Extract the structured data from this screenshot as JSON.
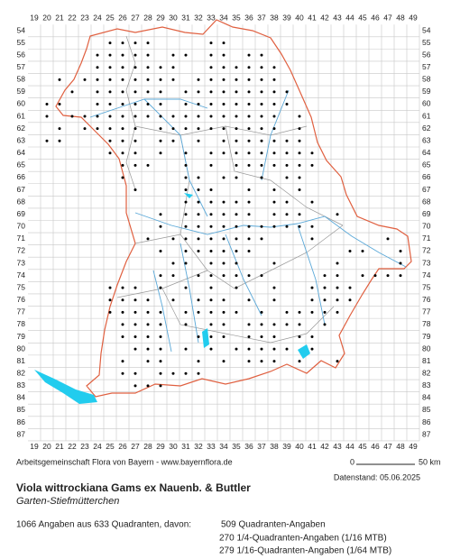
{
  "map": {
    "columns": [
      19,
      20,
      21,
      22,
      23,
      24,
      25,
      26,
      27,
      28,
      29,
      30,
      31,
      32,
      33,
      34,
      35,
      36,
      37,
      38,
      39,
      40,
      41,
      42,
      43,
      44,
      45,
      46,
      47,
      48,
      49
    ],
    "rows": [
      54,
      55,
      56,
      57,
      58,
      59,
      60,
      61,
      62,
      63,
      64,
      65,
      66,
      67,
      68,
      69,
      70,
      71,
      72,
      73,
      74,
      75,
      76,
      77,
      78,
      79,
      80,
      81,
      82,
      83,
      84,
      85,
      86,
      87
    ],
    "occurrences": [
      {
        "row": 55,
        "cols": [
          25,
          26,
          27,
          28,
          33,
          34
        ]
      },
      {
        "row": 56,
        "cols": [
          24,
          25,
          26,
          27,
          28,
          30,
          31,
          33,
          34,
          36,
          37
        ]
      },
      {
        "row": 57,
        "cols": [
          24,
          25,
          26,
          27,
          28,
          29,
          30,
          33,
          34,
          35,
          36,
          37,
          38
        ]
      },
      {
        "row": 58,
        "cols": [
          21,
          23,
          24,
          25,
          26,
          27,
          28,
          29,
          30,
          32,
          33,
          34,
          35,
          36,
          37,
          38
        ]
      },
      {
        "row": 59,
        "cols": [
          22,
          24,
          25,
          26,
          27,
          28,
          29,
          31,
          32,
          33,
          34,
          35,
          36,
          37,
          38,
          39
        ]
      },
      {
        "row": 60,
        "cols": [
          20,
          21,
          24,
          25,
          26,
          27,
          28,
          29,
          31,
          32,
          33,
          34,
          35,
          36,
          37,
          38,
          39
        ]
      },
      {
        "row": 61,
        "cols": [
          20,
          22,
          23,
          24,
          25,
          26,
          27,
          28,
          29,
          30,
          31,
          32,
          33,
          34,
          35,
          36,
          37,
          38,
          40
        ]
      },
      {
        "row": 62,
        "cols": [
          21,
          23,
          24,
          25,
          26,
          27,
          29,
          30,
          31,
          32,
          33,
          34,
          35,
          36,
          37,
          38,
          40
        ]
      },
      {
        "row": 63,
        "cols": [
          20,
          21,
          25,
          26,
          27,
          29,
          30,
          32,
          34,
          35,
          36,
          37,
          38,
          39,
          40
        ]
      },
      {
        "row": 64,
        "cols": [
          25,
          26,
          27,
          29,
          31,
          33,
          34,
          35,
          36,
          37,
          38,
          39,
          40,
          41
        ]
      },
      {
        "row": 65,
        "cols": [
          26,
          27,
          28,
          31,
          33,
          35,
          36,
          37,
          38,
          39,
          40,
          41
        ]
      },
      {
        "row": 66,
        "cols": [
          26,
          31,
          32,
          34,
          35,
          37,
          39,
          40
        ]
      },
      {
        "row": 67,
        "cols": [
          27,
          31,
          32,
          33,
          36,
          38,
          40
        ]
      },
      {
        "row": 68,
        "cols": [
          31,
          32,
          33,
          34,
          35,
          36,
          38,
          39,
          41
        ]
      },
      {
        "row": 69,
        "cols": [
          29,
          31,
          32,
          33,
          34,
          35,
          36,
          38,
          39,
          40,
          43
        ]
      },
      {
        "row": 70,
        "cols": [
          29,
          31,
          32,
          33,
          34,
          35,
          36,
          37,
          38,
          39,
          40,
          41
        ]
      },
      {
        "row": 71,
        "cols": [
          28,
          30,
          31,
          32,
          33,
          34,
          35,
          36,
          37,
          41,
          47
        ]
      },
      {
        "row": 72,
        "cols": [
          29,
          31,
          32,
          33,
          34,
          35,
          36,
          44,
          45,
          48
        ]
      },
      {
        "row": 73,
        "cols": [
          30,
          31,
          33,
          34,
          35,
          38,
          43,
          48
        ]
      },
      {
        "row": 74,
        "cols": [
          29,
          30,
          32,
          33,
          34,
          35,
          36,
          37,
          42,
          43,
          45,
          46,
          47,
          48
        ]
      },
      {
        "row": 75,
        "cols": [
          25,
          26,
          27,
          29,
          31,
          33,
          35,
          38,
          41,
          42,
          43,
          44
        ]
      },
      {
        "row": 76,
        "cols": [
          25,
          26,
          27,
          28,
          30,
          32,
          33,
          34,
          36,
          38,
          41,
          42,
          43,
          44
        ]
      },
      {
        "row": 77,
        "cols": [
          25,
          26,
          27,
          28,
          29,
          31,
          32,
          33,
          34,
          35,
          37,
          39,
          40,
          41,
          42,
          43
        ]
      },
      {
        "row": 78,
        "cols": [
          26,
          27,
          28,
          29,
          31,
          33,
          34,
          36,
          37,
          38,
          39,
          40,
          42
        ]
      },
      {
        "row": 79,
        "cols": [
          26,
          27,
          28,
          29,
          32,
          33,
          34,
          36,
          37,
          38,
          40,
          41
        ]
      },
      {
        "row": 80,
        "cols": [
          27,
          28,
          29,
          31,
          33,
          35,
          36,
          37,
          38,
          39,
          41
        ]
      },
      {
        "row": 81,
        "cols": [
          26,
          28,
          29,
          32,
          34,
          36,
          37,
          38,
          40,
          43
        ]
      },
      {
        "row": 82,
        "cols": [
          26,
          27,
          29,
          30,
          31,
          32
        ]
      },
      {
        "row": 83,
        "cols": [
          27,
          28,
          29
        ]
      }
    ]
  },
  "footer": {
    "credit": "Arbeitsgemeinschaft Flora von Bayern - www.bayernflora.de",
    "scale_start": "0",
    "scale_end": "50 km",
    "date": "Datenstand: 05.06.2025"
  },
  "species": {
    "name": "Viola wittrockiana Gams ex Nauenb. & Buttler",
    "common_name": "Garten-Stiefmütterchen"
  },
  "stats": {
    "summary": "1066 Angaben aus 633 Quadranten, davon:",
    "lines": [
      "509 Quadranten-Angaben",
      "270 1/4-Quadranten-Angaben (1/16 MTB)",
      "279 1/16-Quadranten-Angaben (1/64 MTB)"
    ]
  }
}
